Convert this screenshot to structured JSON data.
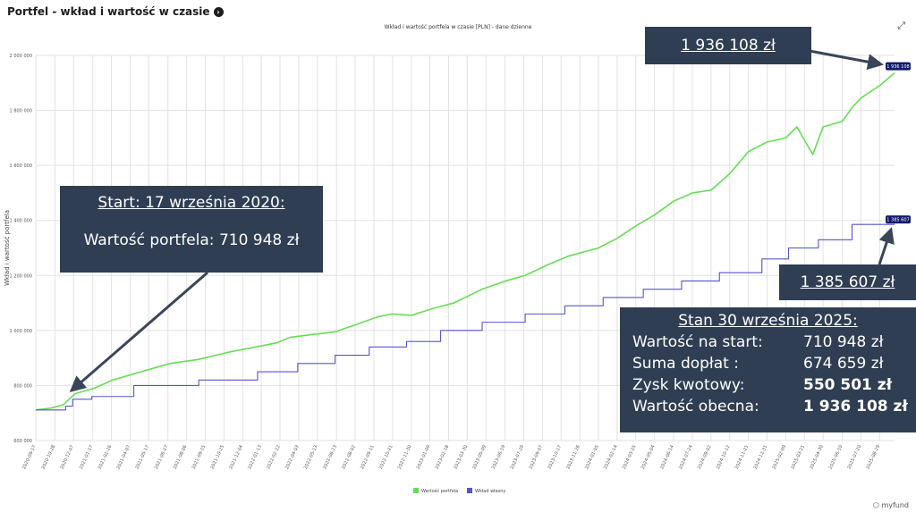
{
  "header": {
    "title": "Portfel - wkład i wartość w czasie",
    "info_icon": "info-icon"
  },
  "expand_icon": "fullscreen-icon",
  "colors": {
    "series_value": "#66dd55",
    "series_contrib": "#5555cc",
    "callout_bg": "#2f3e53",
    "tag_bg": "#111a6b"
  },
  "callouts": {
    "top_value": "1 936 108 zł",
    "contrib_value": "1 385 607 zł",
    "start_title": "Start: 17 września 2020:",
    "start_value": "Wartość portfela: 710 948 zł",
    "summary": {
      "title": "Stan 30 września 2025:",
      "rows": [
        {
          "label": "Wartość na start:",
          "value": "710 948 zł",
          "bold": false
        },
        {
          "label": "Suma dopłat :",
          "value": "674 659 zł",
          "bold": false
        },
        {
          "label": "Zysk kwotowy:",
          "value": "550 501 zł",
          "bold": true
        },
        {
          "label": "Wartość obecna:",
          "value": "1 936 108 zł",
          "bold": true
        }
      ]
    }
  },
  "logo": "myfund",
  "chart_data": {
    "type": "line",
    "title": "Wkład i wartość portfela w czasie [PLN] - dane dzienne",
    "ylabel": "Wkład i wartość portfela",
    "ylim": [
      600000,
      2000000
    ],
    "yticks": [
      "600 000",
      "800 000",
      "1 000 000",
      "1 200 000",
      "1 400 000",
      "1 600 000",
      "1 800 000",
      "2 000 000"
    ],
    "xlim": [
      "2020-09-17",
      "2025-09-30"
    ],
    "xticks": [
      "2020-09-17",
      "2020-10-28",
      "2020-12-07",
      "2021-01-17",
      "2021-02-26",
      "2021-04-07",
      "2021-05-17",
      "2021-06-27",
      "2021-08-06",
      "2021-09-15",
      "2021-10-25",
      "2021-12-04",
      "2022-01-13",
      "2022-02-22",
      "2022-04-03",
      "2022-05-13",
      "2022-06-23",
      "2022-08-02",
      "2022-09-11",
      "2022-10-21",
      "2022-11-30",
      "2023-01-09",
      "2023-02-18",
      "2023-03-30",
      "2023-05-09",
      "2023-06-19",
      "2023-07-29",
      "2023-09-07",
      "2023-10-17",
      "2023-11-26",
      "2024-01-05",
      "2024-02-14",
      "2024-03-25",
      "2024-05-04",
      "2024-06-14",
      "2024-07-24",
      "2024-09-02",
      "2024-10-12",
      "2024-11-21",
      "2024-12-31",
      "2025-02-09",
      "2025-03-21",
      "2025-04-30",
      "2025-06-10",
      "2025-07-20",
      "2025-08-29"
    ],
    "grid": true,
    "legend": "bottom-center",
    "series": [
      {
        "name": "Wartość portfela",
        "points": [
          [
            "2020-09-17",
            710948
          ],
          [
            "2020-10-20",
            718000
          ],
          [
            "2020-11-15",
            730000
          ],
          [
            "2020-12-10",
            770000
          ],
          [
            "2021-01-20",
            790000
          ],
          [
            "2021-03-01",
            820000
          ],
          [
            "2021-05-01",
            850000
          ],
          [
            "2021-07-01",
            880000
          ],
          [
            "2021-09-01",
            895000
          ],
          [
            "2021-11-01",
            920000
          ],
          [
            "2022-01-01",
            940000
          ],
          [
            "2022-02-15",
            955000
          ],
          [
            "2022-03-15",
            975000
          ],
          [
            "2022-05-01",
            985000
          ],
          [
            "2022-06-20",
            995000
          ],
          [
            "2022-08-01",
            1020000
          ],
          [
            "2022-09-20",
            1050000
          ],
          [
            "2022-10-20",
            1060000
          ],
          [
            "2022-12-01",
            1055000
          ],
          [
            "2023-01-15",
            1080000
          ],
          [
            "2023-03-01",
            1100000
          ],
          [
            "2023-05-01",
            1150000
          ],
          [
            "2023-06-20",
            1180000
          ],
          [
            "2023-08-01",
            1200000
          ],
          [
            "2023-09-20",
            1240000
          ],
          [
            "2023-11-01",
            1270000
          ],
          [
            "2024-01-05",
            1300000
          ],
          [
            "2024-02-14",
            1335000
          ],
          [
            "2024-03-25",
            1380000
          ],
          [
            "2024-05-04",
            1420000
          ],
          [
            "2024-06-14",
            1470000
          ],
          [
            "2024-07-24",
            1500000
          ],
          [
            "2024-09-02",
            1510000
          ],
          [
            "2024-10-12",
            1570000
          ],
          [
            "2024-11-21",
            1650000
          ],
          [
            "2024-12-31",
            1685000
          ],
          [
            "2025-02-09",
            1700000
          ],
          [
            "2025-03-05",
            1740000
          ],
          [
            "2025-03-25",
            1680000
          ],
          [
            "2025-04-08",
            1640000
          ],
          [
            "2025-04-30",
            1740000
          ],
          [
            "2025-06-10",
            1760000
          ],
          [
            "2025-07-01",
            1810000
          ],
          [
            "2025-07-20",
            1845000
          ],
          [
            "2025-08-29",
            1890000
          ],
          [
            "2025-09-30",
            1936108
          ]
        ]
      },
      {
        "name": "Wkład własny",
        "points": [
          [
            "2020-09-17",
            710948
          ],
          [
            "2020-11-20",
            725000
          ],
          [
            "2020-12-05",
            750000
          ],
          [
            "2021-01-15",
            760000
          ],
          [
            "2021-04-15",
            800000
          ],
          [
            "2021-09-01",
            820000
          ],
          [
            "2022-01-05",
            850000
          ],
          [
            "2022-04-01",
            880000
          ],
          [
            "2022-06-20",
            910000
          ],
          [
            "2022-09-01",
            940000
          ],
          [
            "2022-11-20",
            960000
          ],
          [
            "2023-02-01",
            1000000
          ],
          [
            "2023-05-01",
            1030000
          ],
          [
            "2023-08-01",
            1060000
          ],
          [
            "2023-10-25",
            1090000
          ],
          [
            "2024-01-15",
            1120000
          ],
          [
            "2024-04-10",
            1150000
          ],
          [
            "2024-07-01",
            1180000
          ],
          [
            "2024-09-20",
            1210000
          ],
          [
            "2024-12-20",
            1260000
          ],
          [
            "2025-02-15",
            1300000
          ],
          [
            "2025-04-20",
            1330000
          ],
          [
            "2025-07-01",
            1385607
          ],
          [
            "2025-09-30",
            1385607
          ]
        ]
      }
    ],
    "annotations": [
      "1 936 108",
      "1 385 607"
    ]
  }
}
